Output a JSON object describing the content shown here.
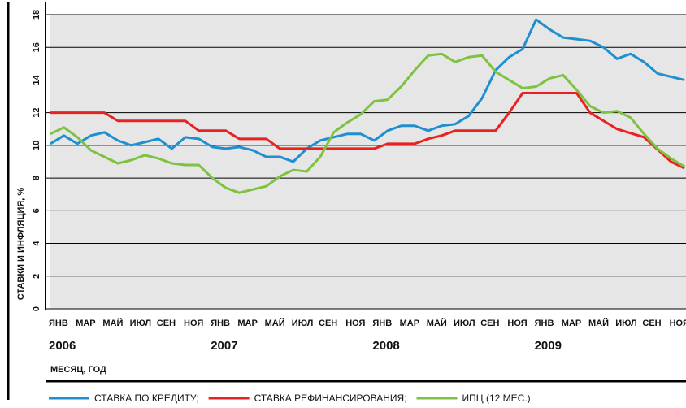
{
  "chart_data": {
    "type": "line",
    "ylabel": "СТАВКИ И ИНФЛЯЦИЯ, %",
    "xlabel": "МЕСЯЦ, ГОД",
    "categories": [
      "ЯНВ",
      null,
      "МАР",
      null,
      "МАЙ",
      null,
      "ИЮЛ",
      null,
      "СЕН",
      null,
      "НОЯ",
      null,
      "ЯНВ",
      null,
      "МАР",
      null,
      "МАЙ",
      null,
      "ИЮЛ",
      null,
      "СЕН",
      null,
      "НОЯ",
      null,
      "ЯНВ",
      null,
      "МАР",
      null,
      "МАЙ",
      null,
      "ИЮЛ",
      null,
      "СЕН",
      null,
      "НОЯ",
      null,
      "ЯНВ",
      null,
      "МАР",
      null,
      "МАЙ",
      null,
      "ИЮЛ",
      null,
      "СЕН",
      null,
      "НОЯ",
      null
    ],
    "years": [
      "2006",
      "2007",
      "2008",
      "2009"
    ],
    "ylim": [
      0,
      18
    ],
    "yticks": [
      0,
      2,
      4,
      6,
      8,
      10,
      12,
      14,
      16,
      18
    ],
    "grid": true,
    "series": [
      {
        "name": "СТАВКА ПО КРЕДИТУ;",
        "color": "#1f8fd0",
        "values": [
          10.1,
          10.6,
          10.1,
          10.6,
          10.8,
          10.3,
          10.0,
          10.2,
          10.4,
          9.8,
          10.5,
          10.4,
          9.9,
          9.8,
          9.9,
          9.7,
          9.3,
          9.3,
          9.0,
          9.8,
          10.3,
          10.5,
          10.7,
          10.7,
          10.3,
          10.9,
          11.2,
          11.2,
          10.9,
          11.2,
          11.3,
          11.8,
          12.9,
          14.6,
          15.4,
          15.9,
          17.7,
          17.1,
          16.6,
          16.5,
          16.4,
          16.0,
          15.3,
          15.6,
          15.1,
          14.4,
          14.2,
          14.0
        ]
      },
      {
        "name": "СТАВКА РЕФИНАНСИРОВАНИЯ;",
        "color": "#e8231f",
        "values": [
          12,
          12,
          12,
          12,
          12,
          11.5,
          11.5,
          11.5,
          11.5,
          11.5,
          11.5,
          10.9,
          10.9,
          10.9,
          10.4,
          10.4,
          10.4,
          9.8,
          9.8,
          9.8,
          9.8,
          9.8,
          9.8,
          9.8,
          9.8,
          10.1,
          10.1,
          10.1,
          10.4,
          10.6,
          10.9,
          10.9,
          10.9,
          10.9,
          12.0,
          13.2,
          13.2,
          13.2,
          13.2,
          13.2,
          12.0,
          11.5,
          11.0,
          10.75,
          10.5,
          9.75,
          9.0,
          8.6
        ]
      },
      {
        "name": "ИПЦ (12 МЕС.)",
        "color": "#7ec242",
        "values": [
          10.7,
          11.1,
          10.5,
          9.7,
          9.3,
          8.9,
          9.1,
          9.4,
          9.2,
          8.9,
          8.8,
          8.8,
          8.0,
          7.4,
          7.1,
          7.3,
          7.5,
          8.1,
          8.5,
          8.4,
          9.3,
          10.8,
          11.4,
          11.9,
          12.7,
          12.8,
          13.6,
          14.6,
          15.5,
          15.6,
          15.1,
          15.4,
          15.5,
          14.5,
          14.0,
          13.5,
          13.6,
          14.1,
          14.3,
          13.4,
          12.4,
          12.0,
          12.1,
          11.7,
          10.7,
          9.8,
          9.2,
          8.7
        ]
      }
    ]
  }
}
